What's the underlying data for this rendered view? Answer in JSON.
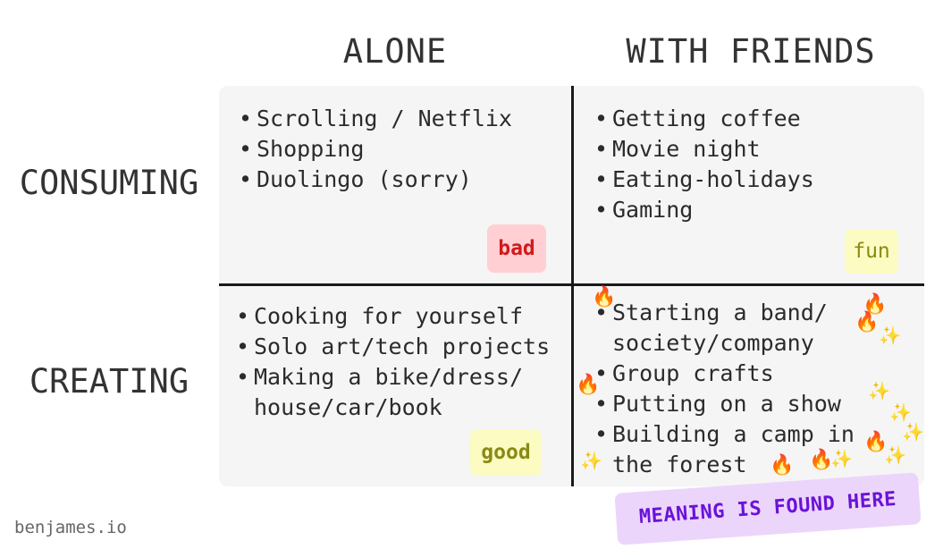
{
  "columns": {
    "alone": "ALONE",
    "with_friends": "WITH FRIENDS"
  },
  "rows": {
    "consuming": "CONSUMING",
    "creating": "CREATING"
  },
  "quadrants": {
    "consuming_alone": {
      "items": [
        "Scrolling / Netflix",
        "Shopping",
        "Duolingo (sorry)"
      ],
      "tag": "bad"
    },
    "consuming_friends": {
      "items": [
        "Getting coffee",
        "Movie night",
        "Eating-holidays",
        "Gaming"
      ],
      "tag": "fun"
    },
    "creating_alone": {
      "items": [
        "Cooking for yourself",
        "Solo art/tech projects",
        "Making a bike/dress/",
        "house/car/book"
      ],
      "tag": "good"
    },
    "creating_friends": {
      "items": [
        "Starting a band/",
        "society/company",
        "Group crafts",
        "Putting on a show",
        "Building a camp in",
        "the forest"
      ]
    }
  },
  "callout": "MEANING IS FOUND HERE",
  "credit": "benjames.io",
  "colors": {
    "bad_bg": "#ffcfd4",
    "bad_text": "#d11a1a",
    "yellow_bg": "#fbfbc2",
    "yellow_text": "#8a8a14",
    "callout_bg": "#ecd5fb",
    "callout_text": "#6a12d8"
  },
  "decorations": [
    "fire-emoji",
    "sparkles-emoji"
  ]
}
